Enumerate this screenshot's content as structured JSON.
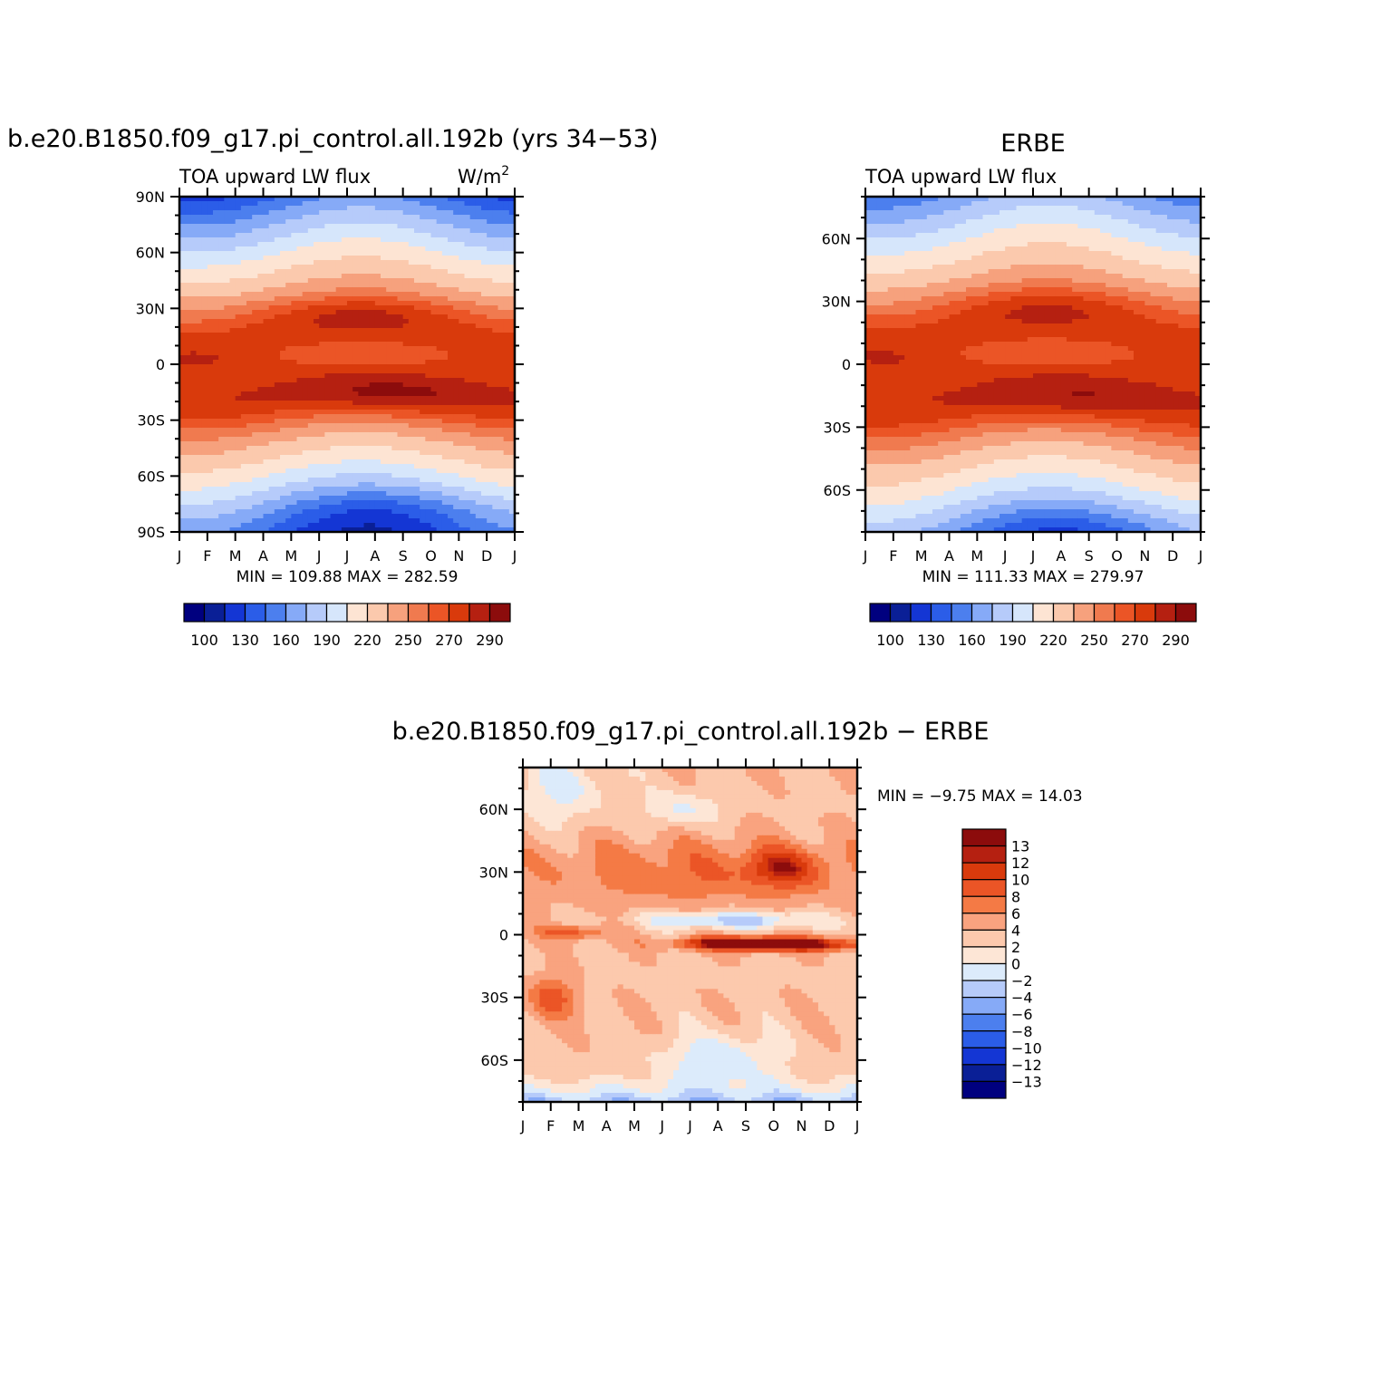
{
  "chart_data": [
    {
      "type": "heatmap",
      "title": "b.e20.B1850.f09_g17.pi_control.all.192b (yrs 34−53)",
      "left_subtitle": "TOA upward LW flux",
      "units": "W/m",
      "units_sup": "2",
      "x_ticks": [
        "J",
        "F",
        "M",
        "A",
        "M",
        "J",
        "J",
        "A",
        "S",
        "O",
        "N",
        "D",
        "J"
      ],
      "y_ticks": [
        "90N",
        "60N",
        "30N",
        "0",
        "30S",
        "60S",
        "90S"
      ],
      "ylim": [
        -90,
        90
      ],
      "stats": "MIN =  109.88 MAX =  282.59",
      "min": 109.88,
      "max": 282.59,
      "colorbar": {
        "levels": [
          100,
          110,
          120,
          130,
          140,
          150,
          160,
          170,
          180,
          190,
          200,
          210,
          220,
          230,
          240,
          250,
          260,
          270,
          280,
          290
        ],
        "labels": [
          "100",
          "130",
          "160",
          "190",
          "220",
          "250",
          "270",
          "290"
        ],
        "colors": [
          "#00007f",
          "#0a1f96",
          "#1436d4",
          "#2b5de8",
          "#4c7fee",
          "#86aaf7",
          "#b6cbfa",
          "#d6e6fb",
          "#fde4d3",
          "#fbc9ad",
          "#f6a17d",
          "#f07a4f",
          "#eb5526",
          "#d93a0c",
          "#b52011",
          "#8c0c0c"
        ]
      },
      "field": {
        "description_free": true,
        "pole_value": 150,
        "equator_value": 245,
        "north_band_peak": 268,
        "south_band_peak": 272,
        "center_peak": 283
      }
    },
    {
      "type": "heatmap",
      "title": "ERBE",
      "left_subtitle": "TOA upward LW flux",
      "x_ticks": [
        "J",
        "F",
        "M",
        "A",
        "M",
        "J",
        "J",
        "A",
        "S",
        "O",
        "N",
        "D",
        "J"
      ],
      "y_ticks": [
        "60N",
        "30N",
        "0",
        "30S",
        "60S"
      ],
      "ylim": [
        -80,
        80
      ],
      "stats": "MIN =  111.33 MAX =  279.97",
      "min": 111.33,
      "max": 279.97,
      "colorbar": {
        "levels": [
          100,
          110,
          120,
          130,
          140,
          150,
          160,
          170,
          180,
          190,
          200,
          210,
          220,
          230,
          240,
          250,
          260,
          270,
          280,
          290
        ],
        "labels": [
          "100",
          "130",
          "160",
          "190",
          "220",
          "250",
          "270",
          "290"
        ],
        "colors": [
          "#00007f",
          "#0a1f96",
          "#1436d4",
          "#2b5de8",
          "#4c7fee",
          "#86aaf7",
          "#b6cbfa",
          "#d6e6fb",
          "#fde4d3",
          "#fbc9ad",
          "#f6a17d",
          "#f07a4f",
          "#eb5526",
          "#d93a0c",
          "#b52011",
          "#8c0c0c"
        ]
      }
    },
    {
      "type": "heatmap",
      "title": "b.e20.B1850.f09_g17.pi_control.all.192b − ERBE",
      "x_ticks": [
        "J",
        "F",
        "M",
        "A",
        "M",
        "J",
        "J",
        "A",
        "S",
        "O",
        "N",
        "D",
        "J"
      ],
      "y_ticks": [
        "60N",
        "30N",
        "0",
        "30S",
        "60S"
      ],
      "ylim": [
        -80,
        80
      ],
      "stats": "MIN =   −9.75 MAX =   14.03",
      "min": -9.75,
      "max": 14.03,
      "colorbar": {
        "levels": [
          13,
          12,
          10,
          8,
          6,
          4,
          2,
          0,
          -2,
          -4,
          -6,
          -8,
          -10,
          -12,
          -13
        ],
        "labels": [
          "13",
          "12",
          "10",
          "8",
          "6",
          "4",
          "2",
          "0",
          "−2",
          "−4",
          "−6",
          "−8",
          "−10",
          "−12",
          "−13"
        ],
        "colors": [
          "#8c0c0c",
          "#b52011",
          "#d93a0c",
          "#eb5526",
          "#f47a45",
          "#f9a37f",
          "#fcc9ad",
          "#fde6d6",
          "#dcebfb",
          "#b6cbfa",
          "#86aaf7",
          "#4c7fee",
          "#2b5de8",
          "#1436d4",
          "#0a1f96",
          "#00007f"
        ]
      }
    }
  ]
}
